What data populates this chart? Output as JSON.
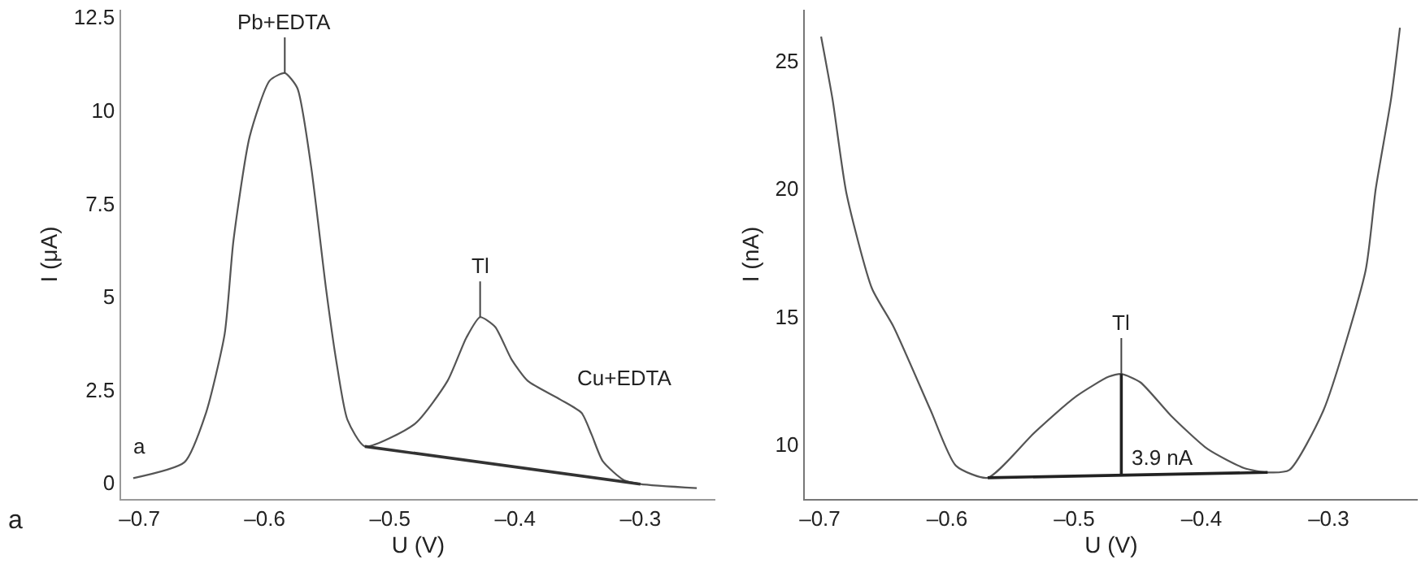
{
  "chart_data": [
    {
      "type": "line",
      "xlabel": "U (V)",
      "ylabel": "I (μA)",
      "xlim": [
        -0.715,
        -0.24
      ],
      "ylim": [
        -0.43,
        12.7
      ],
      "xticks": [
        {
          "value": -0.7,
          "label": "–0.7"
        },
        {
          "value": -0.6,
          "label": "–0.6"
        },
        {
          "value": -0.5,
          "label": "–0.5"
        },
        {
          "value": -0.4,
          "label": "–0.4"
        },
        {
          "value": -0.3,
          "label": "–0.3"
        }
      ],
      "yticks": [
        0,
        2.5,
        5,
        7.5,
        10,
        12.5
      ],
      "legend": false,
      "marker": "none",
      "series": [
        {
          "name": "a",
          "color": "#555555",
          "x": [
            -0.705,
            -0.664,
            -0.647,
            -0.632,
            -0.625,
            -0.612,
            -0.596,
            -0.584,
            -0.574,
            -0.563,
            -0.551,
            -0.543,
            -0.534,
            -0.52,
            -0.48,
            -0.454,
            -0.439,
            -0.428,
            -0.416,
            -0.403,
            -0.39,
            -0.364,
            -0.347,
            -0.339,
            -0.33,
            -0.313,
            -0.3,
            -0.255
          ],
          "values": [
            0.13,
            0.56,
            1.87,
            4.0,
            6.5,
            9.3,
            10.8,
            11.0,
            10.6,
            8.5,
            5.2,
            3.3,
            1.7,
            0.98,
            1.59,
            2.74,
            3.9,
            4.45,
            4.19,
            3.32,
            2.74,
            2.24,
            1.88,
            1.3,
            0.58,
            0.07,
            -0.03,
            -0.14
          ]
        },
        {
          "color": "#333333",
          "x": [
            -0.52,
            -0.3
          ],
          "values": [
            0.98,
            -0.03
          ]
        }
      ],
      "annotations": [
        {
          "text": "Pb+EDTA",
          "x": -0.584,
          "y": 11.0
        },
        {
          "text": "Tl",
          "x": -0.428,
          "y": 4.45
        },
        "Cu+EDTA",
        "a"
      ]
    },
    {
      "type": "line",
      "xlabel": "U (V)",
      "ylabel": "I (nA)",
      "xlim": [
        -0.712,
        -0.23
      ],
      "ylim": [
        7.87,
        27.0
      ],
      "xticks": [
        {
          "value": -0.7,
          "label": "–0.7"
        },
        {
          "value": -0.6,
          "label": "–0.6"
        },
        {
          "value": -0.5,
          "label": "–0.5"
        },
        {
          "value": -0.4,
          "label": "–0.4"
        },
        {
          "value": -0.3,
          "label": "–0.3"
        }
      ],
      "yticks": [
        10,
        15,
        20,
        25
      ],
      "legend": false,
      "marker": "none",
      "series": [
        {
          "color": "#555555",
          "x": [
            -0.699,
            -0.69,
            -0.679,
            -0.659,
            -0.642,
            -0.613,
            -0.593,
            -0.568,
            -0.531,
            -0.498,
            -0.473,
            -0.463,
            -0.448,
            -0.424,
            -0.395,
            -0.366,
            -0.348,
            -0.331,
            -0.304,
            -0.271,
            -0.263,
            -0.251,
            -0.244
          ],
          "values": [
            25.95,
            23.5,
            19.8,
            16.1,
            14.6,
            11.35,
            9.17,
            8.7,
            10.48,
            11.9,
            12.65,
            12.76,
            12.43,
            11.13,
            9.82,
            9.07,
            8.91,
            9.0,
            11.35,
            16.8,
            20.0,
            23.5,
            26.3
          ]
        },
        {
          "color": "#222222",
          "x": [
            -0.568,
            -0.348
          ],
          "values": [
            8.7,
            8.91
          ]
        },
        {
          "color": "#222222",
          "x": [
            -0.463,
            -0.463
          ],
          "values": [
            8.8,
            12.76
          ]
        }
      ],
      "annotations": [
        {
          "text": "Tl",
          "x": -0.463,
          "y": 12.76
        },
        {
          "text": "3.9 nA",
          "x": -0.463,
          "y": 9.5
        }
      ]
    }
  ]
}
